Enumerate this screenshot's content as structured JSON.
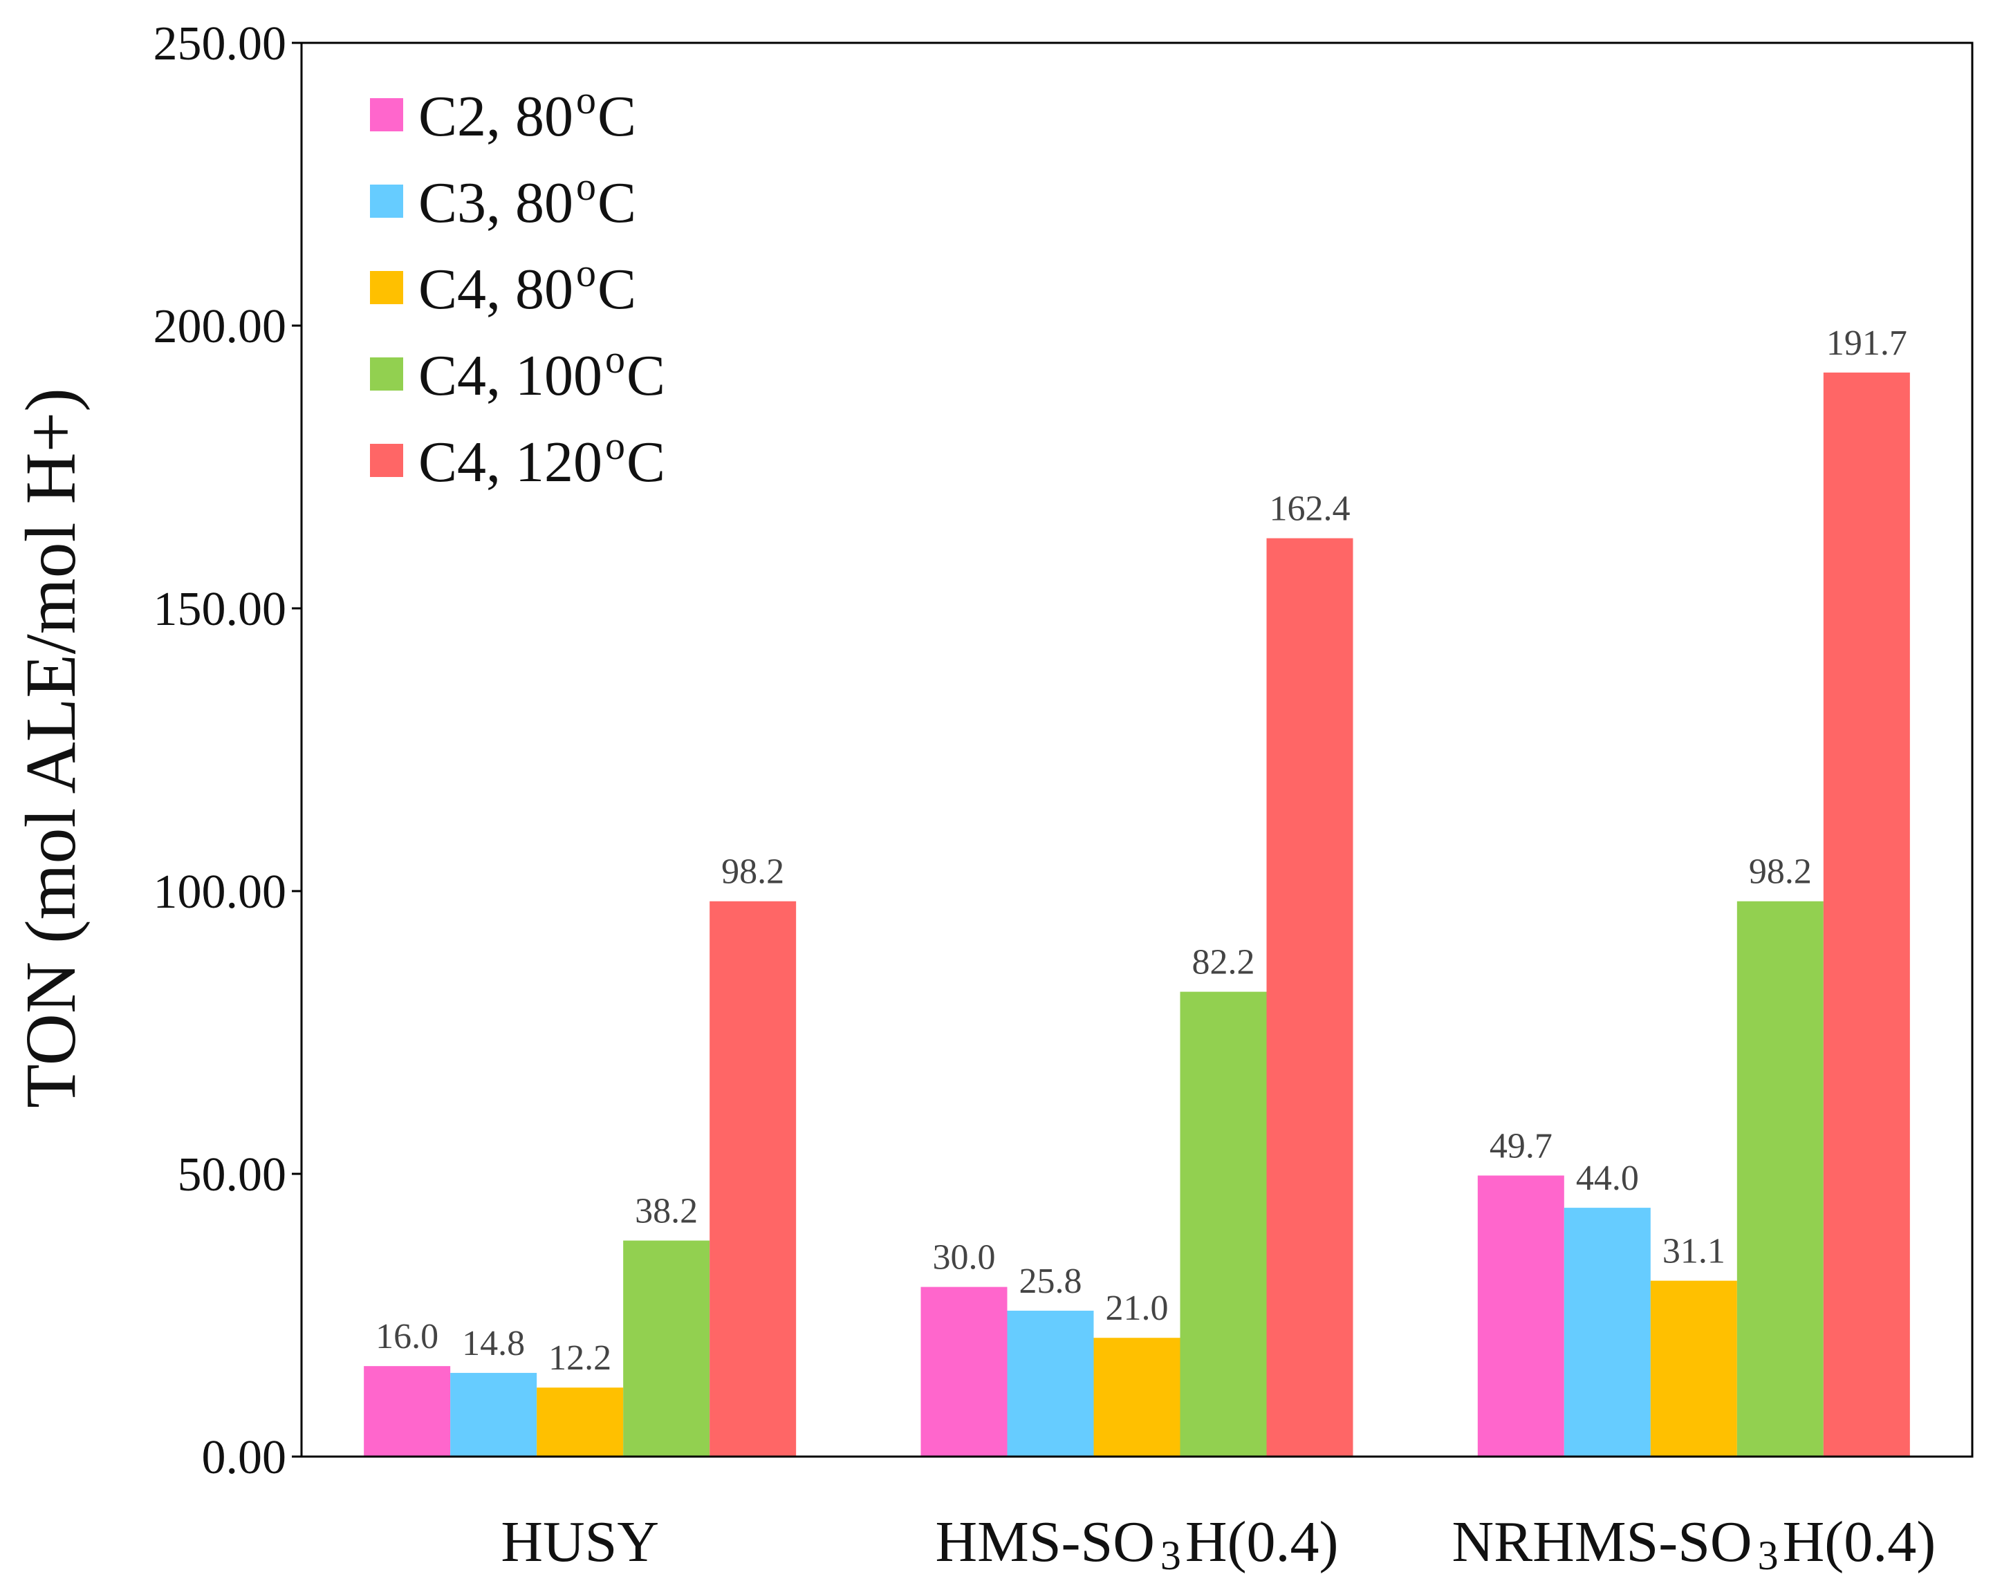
{
  "chart_data": {
    "type": "bar",
    "title": "",
    "xlabel": "",
    "ylabel": "TON (mol ALE/mol H+)",
    "ylim": [
      0,
      250
    ],
    "yticks": [
      0,
      50,
      100,
      150,
      200,
      250
    ],
    "ytick_labels": [
      "0.00",
      "50.00",
      "100.00",
      "150.00",
      "200.00",
      "250.00"
    ],
    "grid": false,
    "legend_position": "top-left",
    "categories": [
      {
        "main": "HUSY",
        "sub": "",
        "tail": ""
      },
      {
        "main": "HMS-SO",
        "sub": "3",
        "tail": "H(0.4)"
      },
      {
        "main": "NRHMS-SO",
        "sub": "3",
        "tail": "H(0.4)"
      }
    ],
    "series": [
      {
        "name": "C2, 80",
        "sup": "o",
        "unit": "C",
        "color": "#FF66CC",
        "values": [
          16.0,
          30.0,
          49.7
        ],
        "labels": [
          "16.0",
          "30.0",
          "49.7"
        ]
      },
      {
        "name": "C3, 80",
        "sup": "o",
        "unit": "C",
        "color": "#66CCFF",
        "values": [
          14.8,
          25.8,
          44.0
        ],
        "labels": [
          "14.8",
          "25.8",
          "44.0"
        ]
      },
      {
        "name": "C4, 80",
        "sup": "o",
        "unit": "C",
        "color": "#FFC000",
        "values": [
          12.2,
          21.0,
          31.1
        ],
        "labels": [
          "12.2",
          "21.0",
          "31.1"
        ]
      },
      {
        "name": "C4, 100",
        "sup": "o",
        "unit": "C",
        "color": "#92D050",
        "values": [
          38.2,
          82.2,
          98.2
        ],
        "labels": [
          "38.2",
          "82.2",
          "98.2"
        ]
      },
      {
        "name": "C4, 120",
        "sup": "o",
        "unit": "C",
        "color": "#FF6666",
        "values": [
          98.2,
          162.4,
          191.7
        ],
        "labels": [
          "98.2",
          "162.4",
          "191.7"
        ]
      }
    ]
  }
}
